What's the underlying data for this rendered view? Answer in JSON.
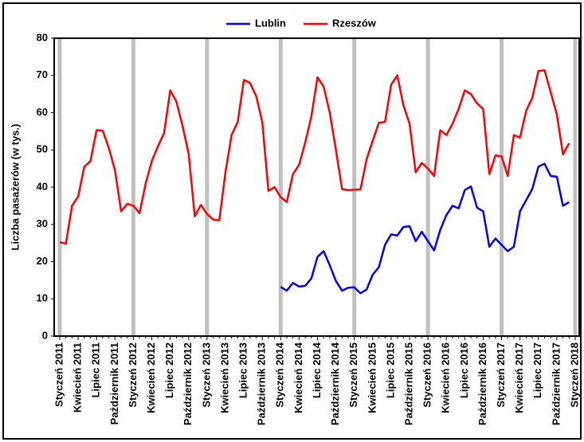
{
  "chart_data": {
    "type": "line",
    "y_label": "Liczba pasażerów (w tys.)",
    "categories": [
      "Styczeń 2011",
      null,
      null,
      "Kwiecień 2011",
      null,
      null,
      "Lipiec 2011",
      null,
      null,
      "Październik 2011",
      null,
      null,
      "Styczeń 2012",
      null,
      null,
      "Kwiecień 2012",
      null,
      null,
      "Lipiec 2012",
      null,
      null,
      "Październik 2012",
      null,
      null,
      "Styczeń 2013",
      null,
      null,
      "Kwiecień 2013",
      null,
      null,
      "Lipiec 2013",
      null,
      null,
      "Październik 2013",
      null,
      null,
      "Styczeń 2014",
      null,
      null,
      "Kwiecień 2014",
      null,
      null,
      "Lipiec 2014",
      null,
      null,
      "Październik 2014",
      null,
      null,
      "Styczeń 2015",
      null,
      null,
      "Kwiecień 2015",
      null,
      null,
      "Lipiec 2015",
      null,
      null,
      "Październik 2015",
      null,
      null,
      "Styczeń 2016",
      null,
      null,
      "Kwiecień 2016",
      null,
      null,
      "Lipiec 2016",
      null,
      null,
      "Październik 2016",
      null,
      null,
      "Styczeń 2017",
      null,
      null,
      "Kwiecień 2017",
      null,
      null,
      "Lipiec 2017",
      null,
      null,
      "Październik 2017",
      null,
      null,
      "Styczeń 2018"
    ],
    "series": [
      {
        "name": "Lublin",
        "color": "#0000ff",
        "values": [
          null,
          null,
          null,
          null,
          null,
          null,
          null,
          null,
          null,
          null,
          null,
          null,
          null,
          null,
          null,
          null,
          null,
          null,
          null,
          null,
          null,
          null,
          null,
          null,
          null,
          null,
          null,
          null,
          null,
          null,
          null,
          null,
          null,
          null,
          null,
          null,
          13.2,
          12.2,
          14.3,
          13.3,
          13.5,
          15.5,
          21.3,
          22.8,
          19,
          14.8,
          12.2,
          13,
          13.1,
          11.5,
          12.5,
          16.5,
          18.5,
          24.5,
          27.3,
          27,
          29.3,
          29.5,
          25.5,
          28,
          25.5,
          23,
          28.5,
          32.5,
          35,
          34.3,
          39.2,
          40.2,
          34.5,
          33.5,
          24,
          26.2,
          24.5,
          22.8,
          24,
          33.5,
          36.5,
          39.5,
          45.5,
          46.3,
          43,
          42.8,
          35,
          36,
          null
        ]
      },
      {
        "name": "Rzeszów",
        "color": "#ff0000",
        "values": [
          25.2,
          24.8,
          35,
          37.5,
          45.5,
          47,
          55.3,
          55.2,
          50.5,
          44.5,
          33.5,
          35.5,
          35,
          33,
          41,
          47,
          51,
          54.5,
          66,
          63,
          56.5,
          49,
          32.2,
          35.2,
          32.8,
          31.3,
          31.1,
          44,
          54,
          57.5,
          68.8,
          68,
          64.5,
          57.5,
          39,
          40,
          37.3,
          36,
          43.5,
          46,
          52,
          59,
          69.5,
          67,
          60,
          50,
          39.5,
          39.2,
          39.3,
          39.4,
          47.5,
          52.5,
          57.3,
          57.5,
          67.5,
          70,
          62,
          57,
          44,
          46.5,
          45,
          43,
          55.3,
          54,
          57,
          61,
          66,
          65,
          62.5,
          61,
          43.5,
          48.5,
          48.3,
          43,
          54,
          53.3,
          60.5,
          64,
          71.2,
          71.4,
          65.5,
          59.5,
          48.8,
          51.8,
          null
        ]
      }
    ],
    "ylim": [
      0,
      80
    ],
    "yticks": [
      0,
      10,
      20,
      30,
      40,
      50,
      60,
      70,
      80
    ]
  }
}
